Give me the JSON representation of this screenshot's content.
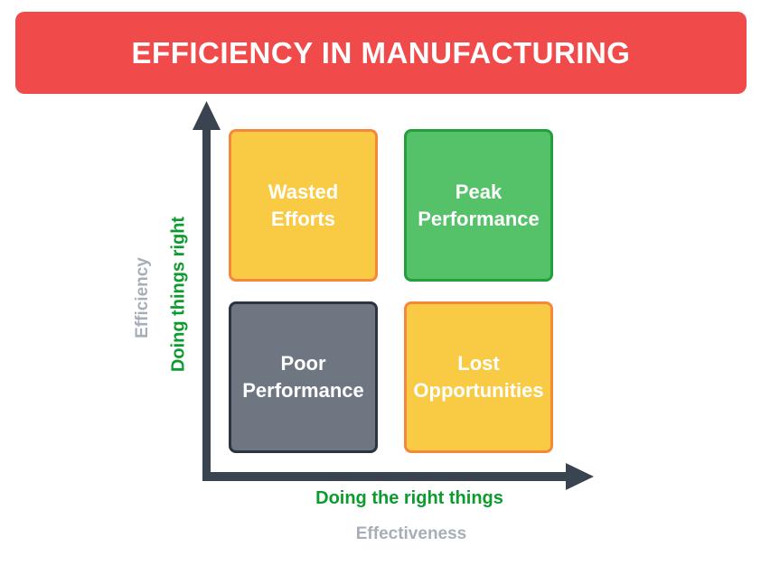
{
  "header": {
    "title": "EFFICIENCY IN MANUFACTURING",
    "bg_color": "#F04A4A",
    "text_color": "#FFFFFF"
  },
  "quadrants": [
    {
      "name": "wasted-efforts",
      "label": "Wasted Efforts",
      "fill": "#F9CB45",
      "border": "#F5883B",
      "text_color": "#FFFFFF"
    },
    {
      "name": "peak-performance",
      "label": "Peak Performance",
      "fill": "#55C168",
      "border": "#21A03C",
      "text_color": "#FFFFFF"
    },
    {
      "name": "poor-performance",
      "label": "Poor Performance",
      "fill": "#6E7682",
      "border": "#2B3440",
      "text_color": "#FFFFFF"
    },
    {
      "name": "lost-opportunities",
      "label": "Lost Opportunities",
      "fill": "#F9CB45",
      "border": "#F5883B",
      "text_color": "#FFFFFF"
    }
  ],
  "axes": {
    "arrow_color": "#3A4450",
    "y_primary_label": "Doing things right",
    "y_secondary_label": "Efficiency",
    "x_primary_label": "Doing the right things",
    "x_secondary_label": "Effectiveness",
    "primary_label_color": "#0D9B2E",
    "secondary_label_color": "#A8AEB8"
  }
}
